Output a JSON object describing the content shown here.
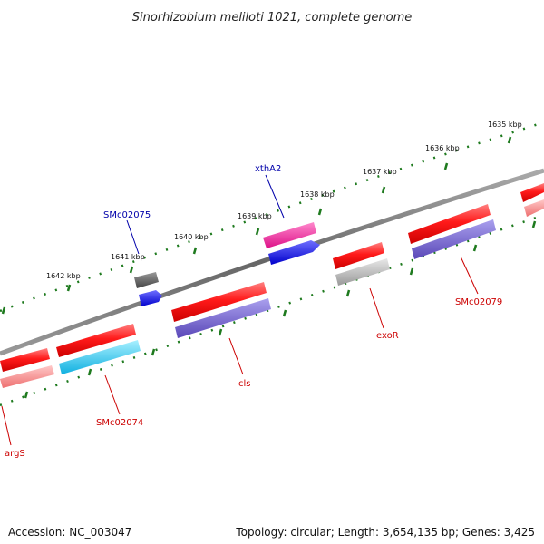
{
  "title": "Sinorhizobium meliloti 1021, complete genome",
  "footer": {
    "accession": "Accession: NC_003047",
    "summary": "Topology: circular; Length: 3,654,135 bp; Genes: 3,425"
  },
  "scale": {
    "unit": "kbp",
    "ticks": [
      "1642 kbp",
      "1641 kbp",
      "1640 kbp",
      "1639 kbp",
      "1638 kbp",
      "1637 kbp",
      "1636 kbp",
      "1635 kbp"
    ]
  },
  "genes": {
    "upper_strand": [
      {
        "label": "SMc02075",
        "color": "#0000aa"
      },
      {
        "label": "xthA2",
        "color": "#0000aa"
      }
    ],
    "lower_strand": [
      {
        "label": "argS",
        "color": "#cc0000"
      },
      {
        "label": "SMc02074",
        "color": "#cc0000"
      },
      {
        "label": "cls",
        "color": "#cc0000"
      },
      {
        "label": "exoR",
        "color": "#cc0000"
      },
      {
        "label": "SMc02079",
        "color": "#cc0000"
      }
    ]
  },
  "colors": {
    "backbone": "#777777",
    "tick": "#1e7a1e",
    "cds": "#ee0000",
    "plus_gene": "#1a1aee",
    "minus_gene_cyan": "#22c8ee",
    "minus_gene_purple": "#7060cc",
    "pseudo": "#b0b0b0",
    "magenta": "#ee2299"
  }
}
